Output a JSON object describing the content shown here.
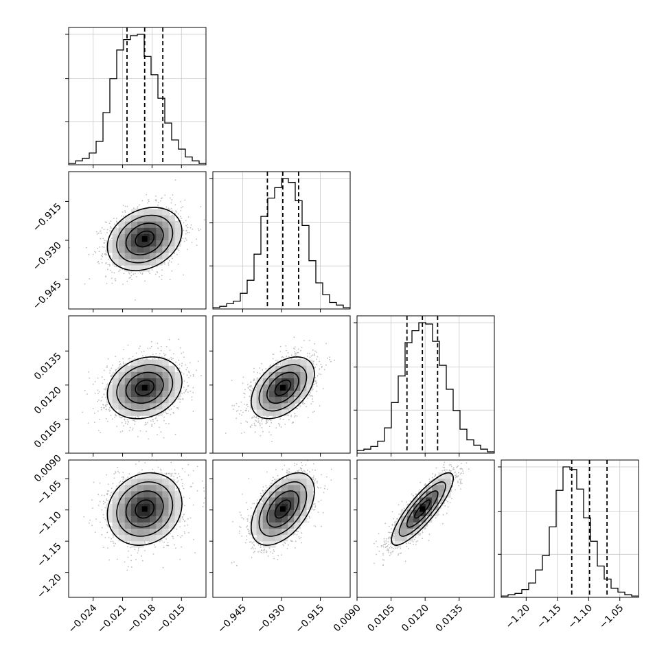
{
  "chart_data": {
    "type": "corner",
    "title": "",
    "parameters": [
      {
        "name": "",
        "range": [
          -0.0265,
          -0.0125
        ],
        "ticks": [
          -0.024,
          -0.021,
          -0.018,
          -0.015
        ],
        "tick_labels": [
          "−0.024",
          "−0.021",
          "−0.018",
          "−0.015"
        ],
        "quantiles": [
          -0.02055,
          -0.01875,
          -0.0169
        ],
        "mean": -0.01875,
        "std": 0.0019
      },
      {
        "name": "",
        "range": [
          -0.9565,
          -0.9035
        ],
        "ticks": [
          -0.945,
          -0.93,
          -0.915
        ],
        "tick_labels": [
          "−0.945",
          "−0.930",
          "−0.915"
        ],
        "quantiles": [
          -0.93545,
          -0.9295,
          -0.9234
        ],
        "mean": -0.9295,
        "std": 0.0061
      },
      {
        "name": "",
        "range": [
          0.009,
          0.01505
        ],
        "ticks": [
          0.009,
          0.0105,
          0.012,
          0.0135
        ],
        "tick_labels": [
          "0.0090",
          "0.0105",
          "0.0120",
          "0.0135"
        ],
        "quantiles": [
          0.0112,
          0.01188,
          0.01255
        ],
        "mean": 0.01188,
        "std": 0.00068
      },
      {
        "name": "",
        "range": [
          -1.24,
          -1.02
        ],
        "ticks": [
          -1.2,
          -1.15,
          -1.1,
          -1.05
        ],
        "tick_labels": [
          "−1.20",
          "−1.15",
          "−1.10",
          "−1.05"
        ],
        "quantiles": [
          -1.127,
          -1.0985,
          -1.0705
        ],
        "mean": -1.0985,
        "std": 0.029
      }
    ],
    "correlations": [
      [
        1,
        0.25,
        0.2,
        0.15
      ],
      [
        0.25,
        1,
        0.45,
        0.5
      ],
      [
        0.2,
        0.45,
        1,
        0.85
      ],
      [
        0.15,
        0.5,
        0.85,
        1
      ]
    ],
    "histograms": [
      [
        1,
        3,
        5,
        9,
        18,
        40,
        66,
        88,
        96,
        99,
        100,
        83,
        69,
        51,
        32,
        19,
        12,
        6,
        3,
        1
      ],
      [
        1,
        2,
        4,
        6,
        12,
        22,
        42,
        71,
        85,
        93,
        100,
        97,
        83,
        64,
        37,
        20,
        11,
        5,
        3,
        1
      ],
      [
        2,
        3,
        5,
        9,
        19,
        38,
        58,
        83,
        92,
        98,
        97,
        84,
        66,
        48,
        32,
        18,
        10,
        6,
        3,
        1
      ],
      [
        1,
        2,
        3,
        6,
        11,
        21,
        32,
        54,
        82,
        100,
        98,
        83,
        61,
        43,
        24,
        14,
        7,
        4,
        2,
        1
      ]
    ],
    "contour_levels_sigma": [
      0.5,
      1.0,
      1.5,
      2.0
    ],
    "grid": true,
    "legend": "none"
  }
}
